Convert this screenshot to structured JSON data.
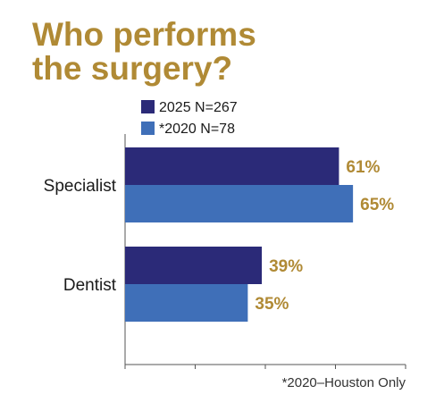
{
  "title_lines": [
    "Who performs",
    "the surgery?"
  ],
  "footnote": "*2020–Houston Only",
  "colors": {
    "title": "#b08a35",
    "series_2025": "#2b2a78",
    "series_2020": "#3f6fb8",
    "value_label": "#b08a35"
  },
  "chart_data": {
    "type": "bar",
    "orientation": "horizontal",
    "categories": [
      "Specialist",
      "Dentist"
    ],
    "series": [
      {
        "name": "2025 N=267",
        "values": [
          61,
          39
        ]
      },
      {
        "name": "*2020 N=78",
        "values": [
          65,
          35
        ]
      }
    ],
    "value_labels": [
      [
        "61%",
        "39%"
      ],
      [
        "65%",
        "35%"
      ]
    ],
    "xlim": [
      0,
      80
    ],
    "legend": "top-left",
    "grid": false
  }
}
